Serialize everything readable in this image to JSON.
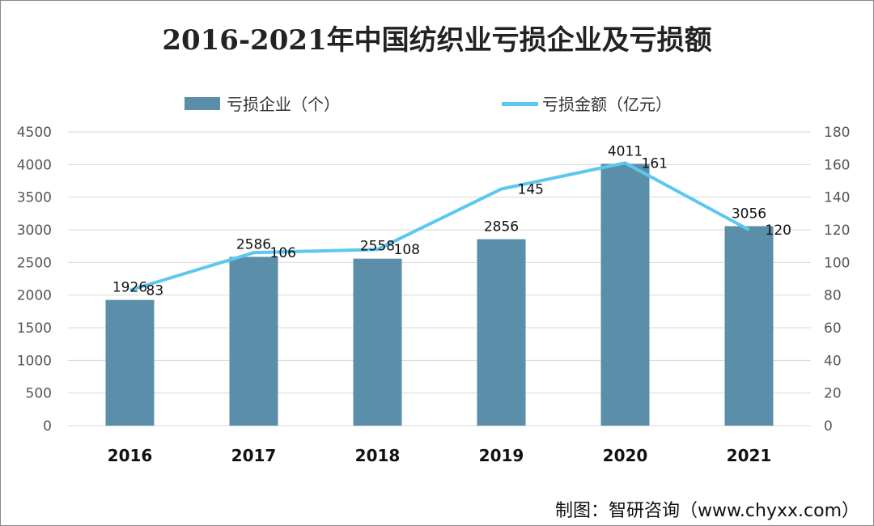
{
  "chart_data": {
    "type": "bar",
    "title": "2016-2021年中国纺织业亏损企业及亏损额",
    "categories": [
      "2016",
      "2017",
      "2018",
      "2019",
      "2020",
      "2021"
    ],
    "series": [
      {
        "name": "亏损企业（个）",
        "type": "bar",
        "axis": "left",
        "values": [
          1926,
          2586,
          2558,
          2856,
          4011,
          3056
        ],
        "color": "#5b8ea8"
      },
      {
        "name": "亏损金额（亿元）",
        "type": "line",
        "axis": "right",
        "values": [
          83,
          106,
          108,
          145,
          161,
          120
        ],
        "color": "#5cc8ef"
      }
    ],
    "ylim": [
      0,
      4500
    ],
    "yticks": [
      0,
      500,
      1000,
      1500,
      2000,
      2500,
      3000,
      3500,
      4000,
      4500
    ],
    "y2lim": [
      0,
      180
    ],
    "y2ticks": [
      0,
      20,
      40,
      60,
      80,
      100,
      120,
      140,
      160,
      180
    ],
    "grid": true,
    "legend": "top"
  },
  "credit": "制图：智研咨询（www.chyxx.com）"
}
